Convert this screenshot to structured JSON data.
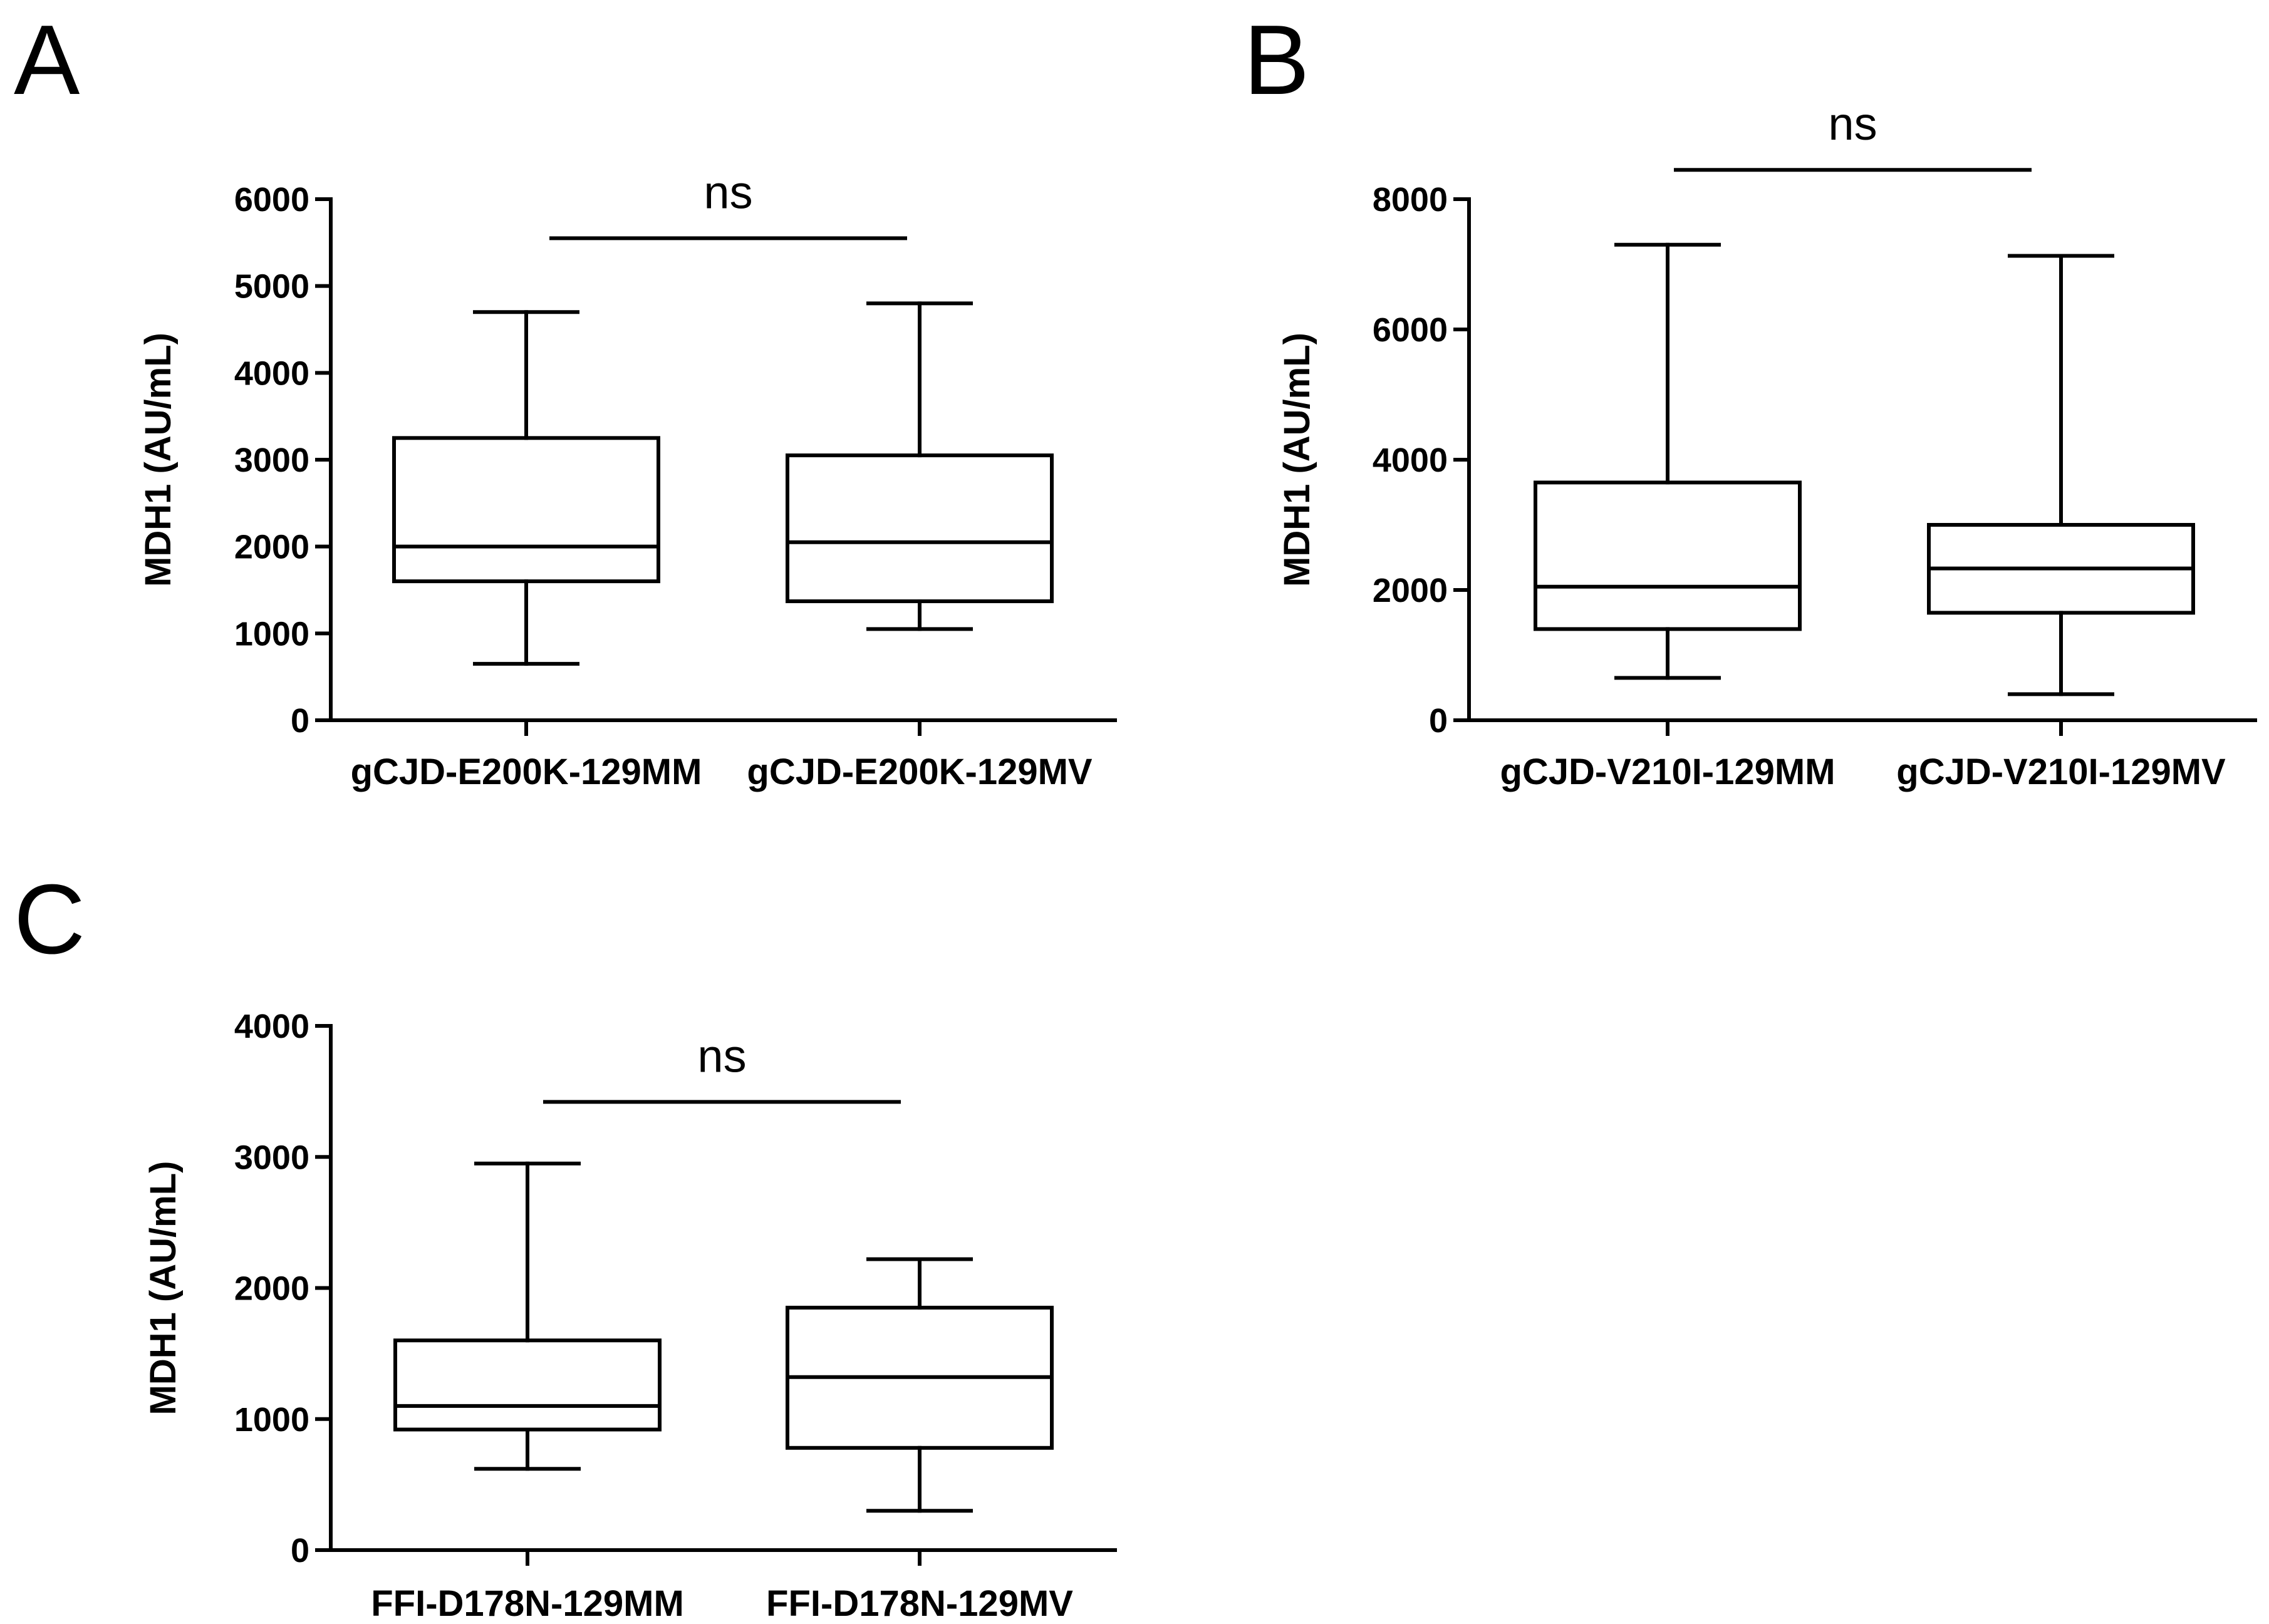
{
  "chart_data": [
    {
      "type": "box",
      "panel": "A",
      "ylabel": "MDH1 (AU/mL)",
      "ylim": [
        0,
        6000
      ],
      "yticks": [
        0,
        1000,
        2000,
        3000,
        4000,
        5000,
        6000
      ],
      "categories": [
        "gCJD-E200K-129MM",
        "gCJD-E200K-129MV"
      ],
      "boxes": [
        {
          "min": 650,
          "q1": 1600,
          "median": 2000,
          "q3": 3250,
          "max": 4700
        },
        {
          "min": 1050,
          "q1": 1370,
          "median": 2050,
          "q3": 3050,
          "max": 4800
        }
      ],
      "significance": "ns",
      "significance_y": 5550
    },
    {
      "type": "box",
      "panel": "B",
      "ylabel": "MDH1 (AU/mL)",
      "ylim": [
        0,
        8000
      ],
      "yticks": [
        0,
        2000,
        4000,
        6000,
        8000
      ],
      "categories": [
        "gCJD-V210I-129MM",
        "gCJD-V210I-129MV"
      ],
      "boxes": [
        {
          "min": 650,
          "q1": 1400,
          "median": 2050,
          "q3": 3650,
          "max": 7300
        },
        {
          "min": 400,
          "q1": 1650,
          "median": 2330,
          "q3": 3000,
          "max": 7130
        }
      ],
      "significance": "ns",
      "significance_y": 8450
    },
    {
      "type": "box",
      "panel": "C",
      "ylabel": "MDH1 (AU/mL)",
      "ylim": [
        0,
        4000
      ],
      "yticks": [
        0,
        1000,
        2000,
        3000,
        4000
      ],
      "categories": [
        "FFI-D178N-129MM",
        "FFI-D178N-129MV"
      ],
      "boxes": [
        {
          "min": 620,
          "q1": 920,
          "median": 1100,
          "q3": 1600,
          "max": 2950
        },
        {
          "min": 300,
          "q1": 780,
          "median": 1320,
          "q3": 1850,
          "max": 2220
        }
      ],
      "significance": "ns",
      "significance_y": 3420
    }
  ]
}
